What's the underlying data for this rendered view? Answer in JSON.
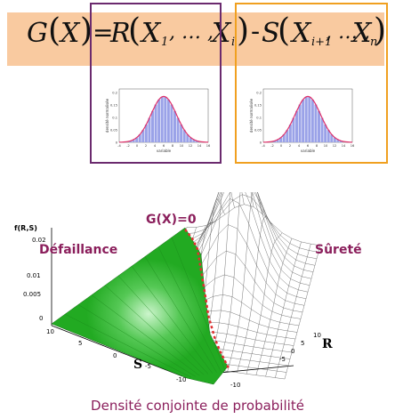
{
  "formula": {
    "lhs": "G",
    "lhs_arg": "X",
    "equals": "=",
    "r": "R",
    "x": "X",
    "sub1": "1",
    "sep": ", … ,",
    "subi": "i",
    "minus": "-",
    "s": "S",
    "subi1": "i+1",
    "subn": "n"
  },
  "mini_plot": {
    "ylabel": "densité normalisée",
    "xlabel": "variable",
    "yticks": [
      "0.2",
      "0.15",
      "0.1",
      "0.05",
      "0"
    ],
    "xticks": [
      "-4",
      "-2",
      "0",
      "2",
      "4",
      "6",
      "8",
      "10",
      "12",
      "14",
      "16"
    ]
  },
  "plot3d": {
    "zlabel": "f(R,S)",
    "zticks": [
      "0.02",
      "0.01",
      "0.005",
      "0"
    ],
    "s_axis_label": "S",
    "r_axis_label": "R",
    "s_ticks": [
      "10",
      "5",
      "0",
      "-5",
      "-10"
    ],
    "r_ticks": [
      "10",
      "5",
      "0",
      "-5",
      "-10"
    ],
    "limit_state_label": "G(X)=0",
    "failure_label": "Défaillance",
    "safety_label": "Sûreté",
    "failure_color": "#22aa22",
    "limit_color": "#e03030",
    "label_color": "#8b1f5c"
  },
  "caption": "Densité conjointe de probabilité",
  "colors": {
    "band": "#f9caa0",
    "box_r": "#6b2a6e",
    "box_s": "#f0a020",
    "curve": "#e0306a",
    "bars": "#9aa2e8"
  }
}
